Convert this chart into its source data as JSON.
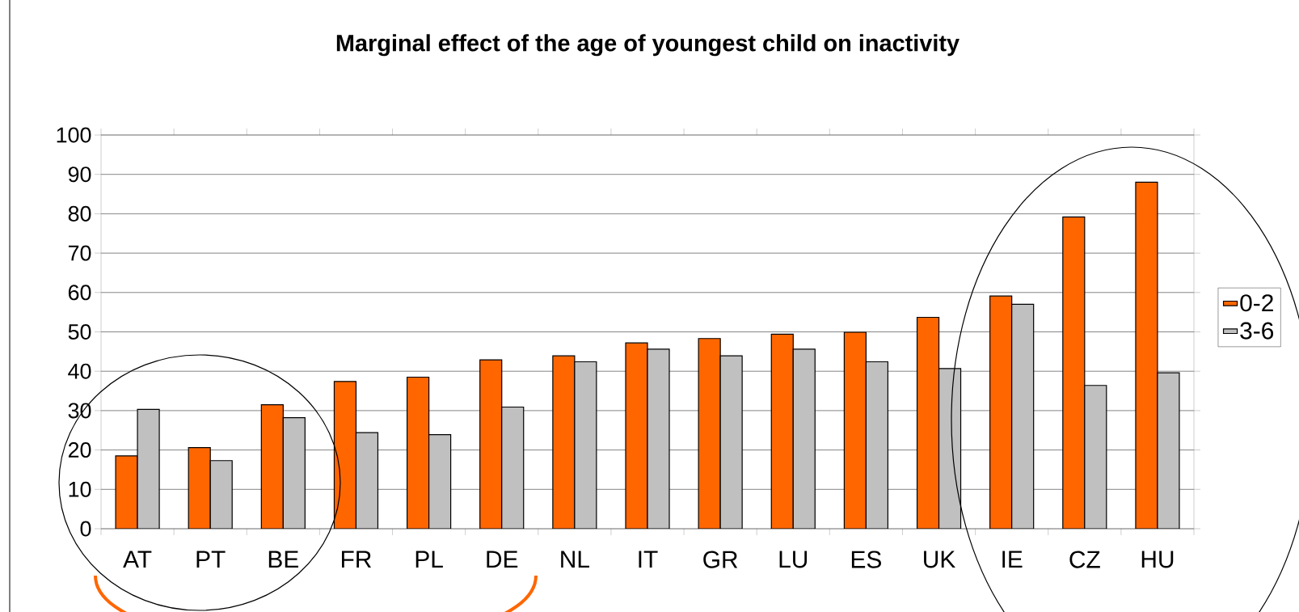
{
  "chart_data": {
    "type": "bar",
    "title": "Marginal effect of the age of youngest child on inactivity",
    "categories": [
      "AT",
      "PT",
      "BE",
      "FR",
      "PL",
      "DE",
      "NL",
      "IT",
      "GR",
      "LU",
      "ES",
      "UK",
      "IE",
      "CZ",
      "HU"
    ],
    "series": [
      {
        "name": "0-2",
        "color": "#ff6600",
        "values": [
          18.5,
          20.6,
          31.5,
          37.4,
          38.5,
          42.9,
          43.9,
          47.2,
          48.3,
          49.4,
          49.9,
          53.7,
          59.1,
          79.2,
          88.0
        ]
      },
      {
        "name": "3-6",
        "color": "#c0c0c0",
        "values": [
          30.3,
          17.3,
          28.2,
          24.4,
          23.9,
          30.9,
          42.4,
          45.6,
          43.9,
          45.6,
          42.4,
          40.7,
          57.0,
          36.4,
          39.6
        ]
      }
    ],
    "ylim": [
      0,
      100
    ],
    "yticks": [
      0,
      10,
      20,
      30,
      40,
      50,
      60,
      70,
      80,
      90,
      100
    ],
    "grid": "y",
    "legend": "right"
  }
}
